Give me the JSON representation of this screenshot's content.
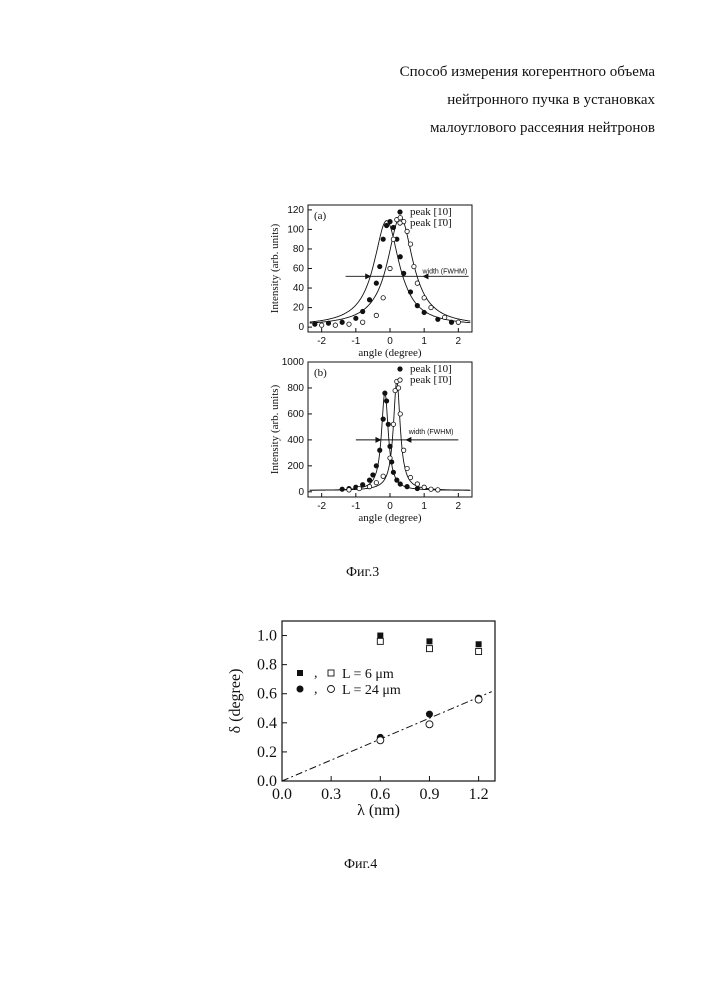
{
  "header": {
    "lines": [
      "Способ измерения когерентного объема",
      "нейтронного пучка в установках",
      "малоуглового рассеяния нейтронов"
    ]
  },
  "captions": {
    "fig3": "Фиг.3",
    "fig4": "Фиг.4"
  },
  "chart_data": [
    {
      "type": "scatter",
      "panel_label": "(a)",
      "xlabel": "angle (degree)",
      "ylabel": "Intensity (arb. units)",
      "xlim": [
        -2.4,
        2.4
      ],
      "ylim": [
        -5,
        125
      ],
      "xticks": [
        -2,
        -1,
        0,
        1,
        2
      ],
      "yticks": [
        0,
        20,
        40,
        60,
        80,
        100,
        120
      ],
      "annotation": "width (FWHM)",
      "fwhm_level": 52,
      "series": [
        {
          "name": "peak [10]",
          "marker": "filled-circle",
          "x": [
            -2.2,
            -1.8,
            -1.4,
            -1.0,
            -0.8,
            -0.6,
            -0.4,
            -0.3,
            -0.2,
            -0.1,
            0.0,
            0.1,
            0.2,
            0.3,
            0.4,
            0.6,
            0.8,
            1.0,
            1.4,
            1.8
          ],
          "y": [
            3,
            4,
            5,
            9,
            16,
            28,
            45,
            62,
            90,
            104,
            108,
            102,
            90,
            72,
            55,
            36,
            22,
            15,
            8,
            5
          ],
          "fit": {
            "center": -0.1,
            "amplitude": 108,
            "gamma": 0.45,
            "baseline": 1
          }
        },
        {
          "name": "peak [1̄0]",
          "marker": "open-circle",
          "x": [
            -2.0,
            -1.6,
            -1.2,
            -0.8,
            -0.4,
            -0.2,
            0.0,
            0.1,
            0.2,
            0.3,
            0.4,
            0.5,
            0.6,
            0.7,
            0.8,
            1.0,
            1.2,
            1.6,
            2.0
          ],
          "y": [
            2,
            2,
            3,
            5,
            12,
            30,
            60,
            90,
            110,
            112,
            108,
            98,
            85,
            62,
            45,
            30,
            20,
            10,
            5
          ],
          "fit": {
            "center": 0.3,
            "amplitude": 112,
            "gamma": 0.45,
            "baseline": 1
          }
        }
      ]
    },
    {
      "type": "scatter",
      "panel_label": "(b)",
      "xlabel": "angle (degree)",
      "ylabel": "Intensity (arb. units)",
      "xlim": [
        -2.4,
        2.4
      ],
      "ylim": [
        -40,
        1000
      ],
      "xticks": [
        -2,
        -1,
        0,
        1,
        2
      ],
      "yticks": [
        0,
        200,
        400,
        600,
        800,
        1000
      ],
      "annotation": "width (FWHM)",
      "fwhm_level": 400,
      "series": [
        {
          "name": "peak [10]",
          "marker": "filled-circle",
          "x": [
            -1.4,
            -1.2,
            -1.0,
            -0.8,
            -0.6,
            -0.5,
            -0.4,
            -0.3,
            -0.2,
            -0.15,
            -0.1,
            -0.05,
            0.0,
            0.05,
            0.1,
            0.2,
            0.3,
            0.5,
            0.8
          ],
          "y": [
            20,
            25,
            35,
            55,
            90,
            130,
            200,
            320,
            560,
            760,
            700,
            520,
            350,
            230,
            150,
            90,
            60,
            40,
            25
          ],
          "fit": {
            "center": -0.15,
            "amplitude": 760,
            "gamma": 0.12,
            "baseline": 10
          }
        },
        {
          "name": "peak [1̄0]",
          "marker": "open-circle",
          "x": [
            -1.2,
            -0.9,
            -0.6,
            -0.4,
            -0.2,
            0.0,
            0.1,
            0.15,
            0.2,
            0.25,
            0.3,
            0.4,
            0.5,
            0.6,
            0.8,
            1.0,
            1.2,
            1.4
          ],
          "y": [
            15,
            25,
            40,
            70,
            120,
            260,
            520,
            780,
            850,
            800,
            600,
            320,
            180,
            110,
            60,
            35,
            20,
            15
          ],
          "fit": {
            "center": 0.2,
            "amplitude": 850,
            "gamma": 0.12,
            "baseline": 10
          }
        }
      ]
    },
    {
      "type": "scatter",
      "xlabel": "λ (nm)",
      "ylabel": "δ  (degree)",
      "xlim": [
        0,
        1.3
      ],
      "ylim": [
        0,
        1.1
      ],
      "xticks": [
        0.0,
        0.3,
        0.6,
        0.9,
        1.2
      ],
      "yticks": [
        0.0,
        0.2,
        0.4,
        0.6,
        0.8,
        1.0
      ],
      "series": [
        {
          "name": "L = 6 μm",
          "markers": [
            "filled-square",
            "open-square"
          ],
          "x": [
            0.6,
            0.9,
            1.2
          ],
          "y_filled": [
            1.0,
            0.96,
            0.94
          ],
          "y_open": [
            0.96,
            0.91,
            0.89
          ]
        },
        {
          "name": "L = 24 μm",
          "markers": [
            "filled-circle",
            "open-circle"
          ],
          "x": [
            0.6,
            0.9,
            1.2
          ],
          "y_filled": [
            0.3,
            0.46,
            0.57
          ],
          "y_open": [
            0.28,
            0.39,
            0.56
          ]
        }
      ],
      "fit_line": {
        "style": "dash-dot",
        "slope": 0.48,
        "intercept": 0
      }
    }
  ]
}
